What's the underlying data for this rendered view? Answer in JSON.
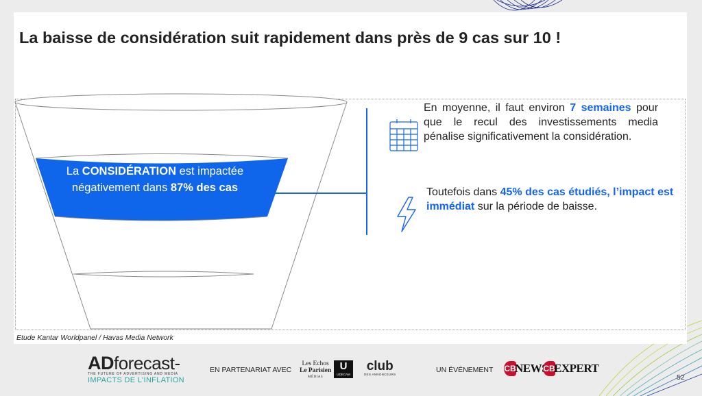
{
  "slide": {
    "title": "La baisse de considération suit rapidement dans près de 9 cas sur 10 !",
    "funnel_band": {
      "line1_pre": "La ",
      "line1_bold": "CONSIDÉRATION",
      "line1_post": " est impactée",
      "line2_pre": "négativement dans ",
      "line2_bold": "87% des cas"
    },
    "info1": {
      "pre": "En moyenne, il faut environ ",
      "highlight": "7 semaines",
      "post": " pour que le recul des investissements media pénalise significativement la considération.",
      "icon": "calendar-icon"
    },
    "info2": {
      "pre": "Toutefois dans ",
      "highlight": "45% des cas étudiés, l’impact est immédiat",
      "post": " sur la période de baisse.",
      "icon": "lightning-icon"
    },
    "source": "Etude Kantar Worldpanel / Havas Media Network",
    "page_number": "52"
  },
  "footer": {
    "ad_logo": {
      "main_bold": "AD",
      "main": "forecast-",
      "tagline": "THE FUTURE OF ADVERTISING AND MEDIA",
      "impacts": "IMPACTS DE L'INFLATION"
    },
    "partner_label": "EN PARTENARIAT AVEC",
    "lesechos": {
      "line1": "Les Echos",
      "line2": "Le Parisien",
      "line3": "MÉDIAS"
    },
    "udecam": {
      "mark": "U",
      "label": "UDECAM"
    },
    "club": {
      "line1": "club",
      "line2": "DES ANNONCEURS"
    },
    "event_label": "UN ÉVÉNEMENT",
    "cb_news": {
      "mark": "CB",
      "text": "NEWS"
    },
    "cb_expert": {
      "mark": "CB",
      "text": "EXPERT"
    }
  },
  "colors": {
    "accent": "#1565f0",
    "band": "#0f66ea",
    "text": "#222222",
    "teal": "#2aa6a0",
    "cb_red": "#c8102e"
  }
}
